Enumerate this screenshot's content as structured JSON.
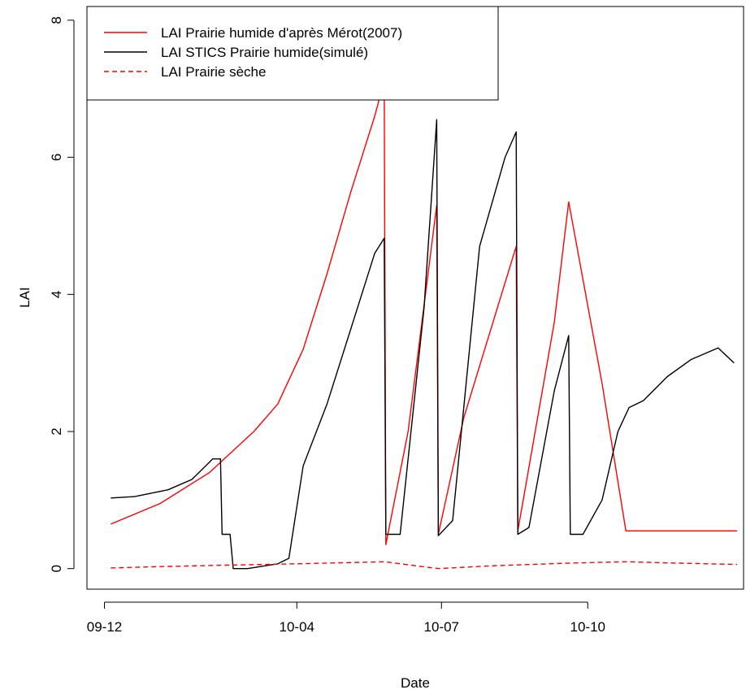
{
  "chart_data": {
    "type": "line",
    "title": "",
    "xlabel": "Date",
    "ylabel": "LAI",
    "x_tick_labels": [
      "09-12",
      "10-04",
      "10-07",
      "10-10"
    ],
    "x_tick_values": [
      "2009-12-01",
      "2010-04-01",
      "2010-07-01",
      "2010-10-01"
    ],
    "xlim": [
      "2009-11-20",
      "2011-01-07"
    ],
    "ylim": [
      -0.3,
      8.2
    ],
    "y_ticks": [
      0,
      2,
      4,
      6,
      8
    ],
    "grid": false,
    "legend_position": "top-left",
    "series": [
      {
        "name": "LAI Prairie humide d'après Mérot(2007)",
        "color": "#ff0000",
        "dash": "solid",
        "points": [
          [
            "2009-12-05",
            0.65
          ],
          [
            "2010-01-05",
            0.95
          ],
          [
            "2010-02-05",
            1.4
          ],
          [
            "2010-03-05",
            2.0
          ],
          [
            "2010-03-20",
            2.4
          ],
          [
            "2010-04-05",
            3.2
          ],
          [
            "2010-04-20",
            4.3
          ],
          [
            "2010-05-05",
            5.5
          ],
          [
            "2010-05-20",
            6.6
          ],
          [
            "2010-05-26",
            7.12
          ],
          [
            "2010-05-27",
            0.35
          ],
          [
            "2010-06-10",
            2.0
          ],
          [
            "2010-06-28",
            5.3
          ],
          [
            "2010-06-29",
            0.5
          ],
          [
            "2010-07-15",
            2.2
          ],
          [
            "2010-08-17",
            4.7
          ],
          [
            "2010-08-18",
            0.55
          ],
          [
            "2010-09-10",
            3.6
          ],
          [
            "2010-09-19",
            5.35
          ],
          [
            "2010-10-10",
            2.7
          ],
          [
            "2010-10-25",
            0.55
          ],
          [
            "2011-01-03",
            0.55
          ]
        ]
      },
      {
        "name": "LAI STICS Prairie humide(simulé)",
        "color": "#000000",
        "dash": "solid",
        "points": [
          [
            "2009-12-05",
            1.03
          ],
          [
            "2009-12-20",
            1.05
          ],
          [
            "2010-01-10",
            1.15
          ],
          [
            "2010-01-25",
            1.3
          ],
          [
            "2010-02-05",
            1.55
          ],
          [
            "2010-02-07",
            1.6
          ],
          [
            "2010-02-12",
            1.6
          ],
          [
            "2010-02-13",
            0.5
          ],
          [
            "2010-02-18",
            0.5
          ],
          [
            "2010-02-20",
            0.0
          ],
          [
            "2010-03-01",
            0.0
          ],
          [
            "2010-03-20",
            0.07
          ],
          [
            "2010-03-27",
            0.15
          ],
          [
            "2010-04-05",
            1.5
          ],
          [
            "2010-04-20",
            2.4
          ],
          [
            "2010-05-05",
            3.5
          ],
          [
            "2010-05-20",
            4.6
          ],
          [
            "2010-05-26",
            4.82
          ],
          [
            "2010-05-27",
            0.5
          ],
          [
            "2010-06-05",
            0.5
          ],
          [
            "2010-06-20",
            3.8
          ],
          [
            "2010-06-28",
            6.55
          ],
          [
            "2010-06-29",
            0.48
          ],
          [
            "2010-07-08",
            0.7
          ],
          [
            "2010-07-25",
            4.7
          ],
          [
            "2010-08-10",
            6.0
          ],
          [
            "2010-08-17",
            6.37
          ],
          [
            "2010-08-18",
            0.5
          ],
          [
            "2010-08-25",
            0.6
          ],
          [
            "2010-09-10",
            2.6
          ],
          [
            "2010-09-19",
            3.4
          ],
          [
            "2010-09-20",
            0.5
          ],
          [
            "2010-09-28",
            0.5
          ],
          [
            "2010-10-10",
            1.0
          ],
          [
            "2010-10-20",
            2.0
          ],
          [
            "2010-10-27",
            2.35
          ],
          [
            "2010-11-05",
            2.45
          ],
          [
            "2010-11-20",
            2.8
          ],
          [
            "2010-12-05",
            3.05
          ],
          [
            "2010-12-15",
            3.15
          ],
          [
            "2010-12-22",
            3.22
          ],
          [
            "2011-01-01",
            3.0
          ]
        ]
      },
      {
        "name": "LAI Prairie sèche",
        "color": "#ff0000",
        "dash": "dashed",
        "points": [
          [
            "2009-12-05",
            0.01
          ],
          [
            "2010-01-05",
            0.03
          ],
          [
            "2010-02-15",
            0.05
          ],
          [
            "2010-04-01",
            0.07
          ],
          [
            "2010-05-26",
            0.1
          ],
          [
            "2010-06-29",
            0.0
          ],
          [
            "2010-08-01",
            0.04
          ],
          [
            "2010-09-20",
            0.08
          ],
          [
            "2010-10-25",
            0.1
          ],
          [
            "2010-11-25",
            0.08
          ],
          [
            "2011-01-03",
            0.06
          ]
        ]
      }
    ]
  }
}
